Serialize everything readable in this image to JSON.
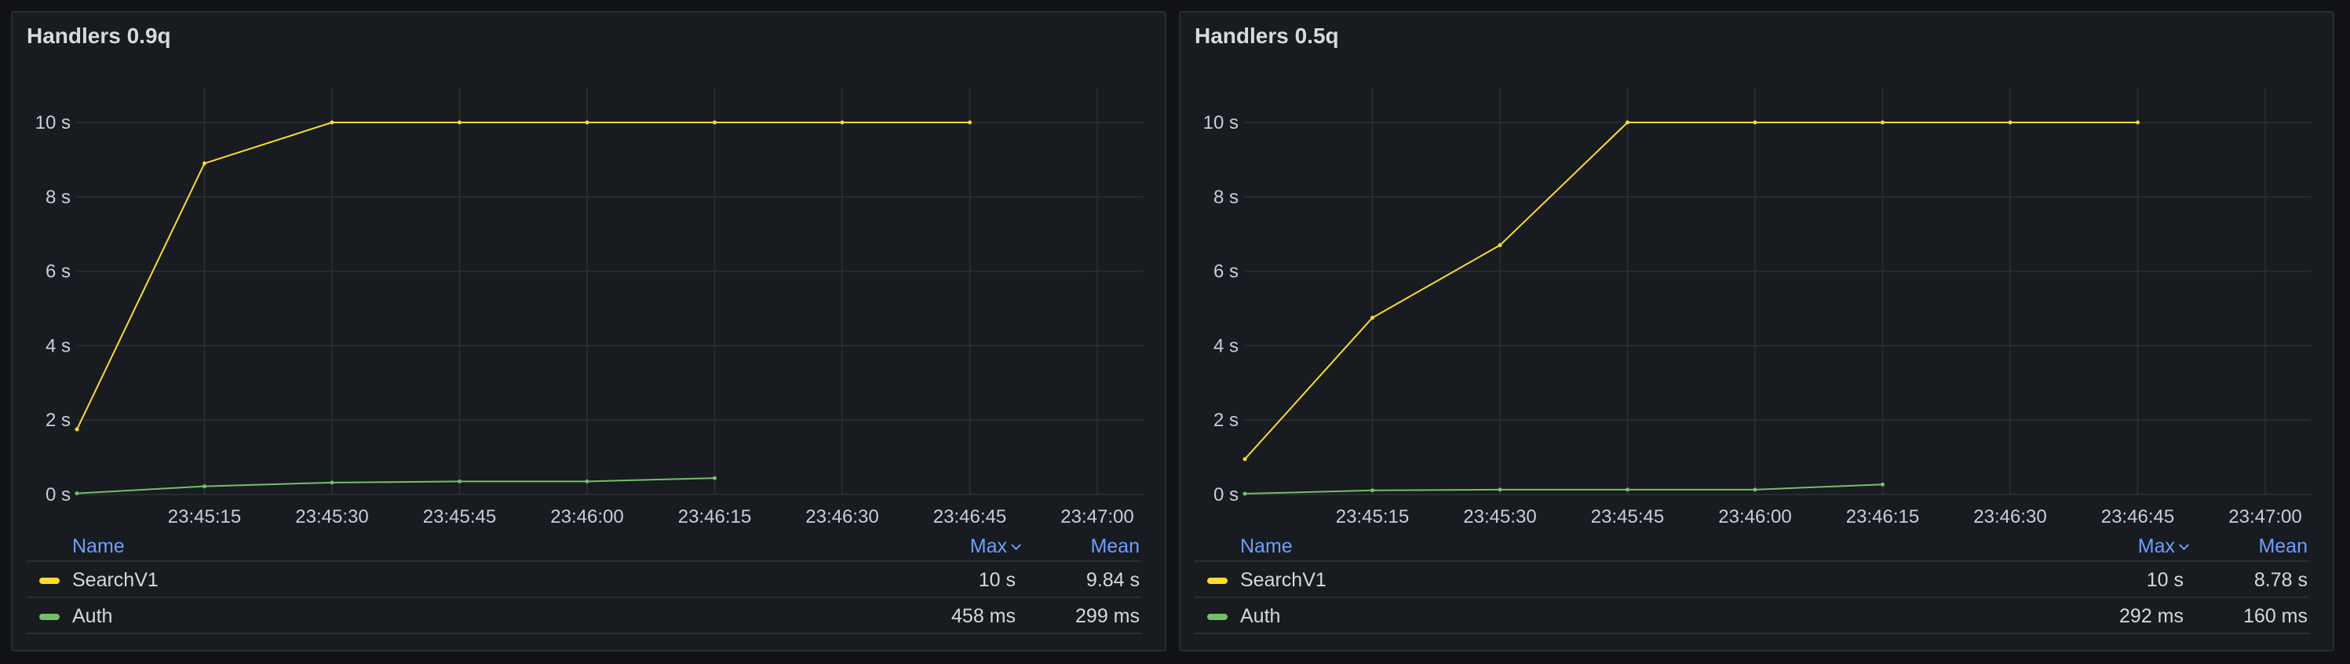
{
  "chart_data": [
    {
      "type": "line",
      "title": "Handlers 0.9q",
      "x": [
        "23:45:03",
        "23:45:15",
        "23:45:30",
        "23:45:45",
        "23:46:00",
        "23:46:15",
        "23:46:30",
        "23:46:45"
      ],
      "x_ticks": [
        "23:45:15",
        "23:45:30",
        "23:45:45",
        "23:46:00",
        "23:46:15",
        "23:46:30",
        "23:46:45",
        "23:47:00"
      ],
      "y_ticks": [
        "0 s",
        "2 s",
        "4 s",
        "6 s",
        "8 s",
        "10 s"
      ],
      "ylim": [
        0,
        10
      ],
      "xlabel": "",
      "ylabel": "",
      "series": [
        {
          "name": "SearchV1",
          "color": "#fade2a",
          "unit": "s",
          "values": [
            1.75,
            8.9,
            10,
            10,
            10,
            10,
            10,
            10
          ],
          "max": "10 s",
          "mean": "9.84 s"
        },
        {
          "name": "Auth",
          "color": "#73bf69",
          "unit": "s",
          "values": [
            0.03,
            0.22,
            0.32,
            0.35,
            0.35,
            0.44,
            null,
            null
          ],
          "max": "458 ms",
          "mean": "299 ms"
        }
      ],
      "legend": {
        "name": "Name",
        "max": "Max",
        "mean": "Mean",
        "placement": "bottom"
      }
    },
    {
      "type": "line",
      "title": "Handlers 0.5q",
      "x": [
        "23:45:03",
        "23:45:15",
        "23:45:30",
        "23:45:45",
        "23:46:00",
        "23:46:15",
        "23:46:30",
        "23:46:45"
      ],
      "x_ticks": [
        "23:45:15",
        "23:45:30",
        "23:45:45",
        "23:46:00",
        "23:46:15",
        "23:46:30",
        "23:46:45",
        "23:47:00"
      ],
      "y_ticks": [
        "0 s",
        "2 s",
        "4 s",
        "6 s",
        "8 s",
        "10 s"
      ],
      "ylim": [
        0,
        10
      ],
      "xlabel": "",
      "ylabel": "",
      "series": [
        {
          "name": "SearchV1",
          "color": "#fade2a",
          "unit": "s",
          "values": [
            0.95,
            4.75,
            6.7,
            10,
            10,
            10,
            10,
            10
          ],
          "max": "10 s",
          "mean": "8.78 s"
        },
        {
          "name": "Auth",
          "color": "#73bf69",
          "unit": "s",
          "values": [
            0.02,
            0.11,
            0.13,
            0.13,
            0.13,
            0.27,
            null,
            null
          ],
          "max": "292 ms",
          "mean": "160 ms"
        }
      ],
      "legend": {
        "name": "Name",
        "max": "Max",
        "mean": "Mean",
        "placement": "bottom"
      }
    }
  ]
}
